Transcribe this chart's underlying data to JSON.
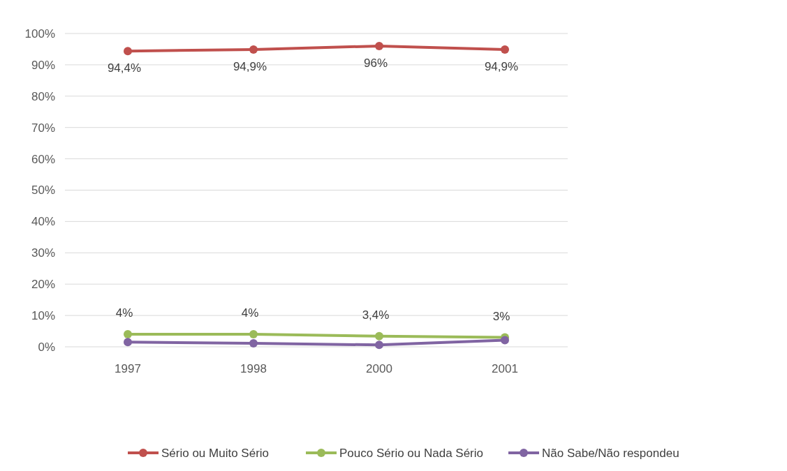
{
  "chart_data": {
    "type": "line",
    "categories": [
      "1997",
      "1998",
      "2000",
      "2001"
    ],
    "series": [
      {
        "name": "Sério ou Muito Sério",
        "color": "#c0504d",
        "values": [
          94.4,
          94.9,
          96,
          94.9
        ],
        "value_labels": [
          "94,4%",
          "94,9%",
          "96%",
          "94,9%"
        ]
      },
      {
        "name": "Pouco Sério ou Nada Sério",
        "color": "#9bbb59",
        "values": [
          4,
          4,
          3.4,
          3
        ],
        "value_labels": [
          "4%",
          "4%",
          "3,4%",
          "3%"
        ]
      },
      {
        "name": "Não Sabe/Não respondeu",
        "color": "#8064a2",
        "values": [
          1.5,
          1.1,
          0.6,
          2.1
        ]
      }
    ],
    "ylim": [
      0,
      100
    ],
    "yticks": [
      {
        "value": 0,
        "label": "0%"
      },
      {
        "value": 10,
        "label": "10%"
      },
      {
        "value": 20,
        "label": "20%"
      },
      {
        "value": 30,
        "label": "30%"
      },
      {
        "value": 40,
        "label": "40%"
      },
      {
        "value": 50,
        "label": "50%"
      },
      {
        "value": 60,
        "label": "60%"
      },
      {
        "value": 70,
        "label": "70%"
      },
      {
        "value": 80,
        "label": "80%"
      },
      {
        "value": 90,
        "label": "90%"
      },
      {
        "value": 100,
        "label": "100%"
      }
    ],
    "grid": "y",
    "legend": "bottom",
    "marker": "circle",
    "line_style": "solid"
  }
}
